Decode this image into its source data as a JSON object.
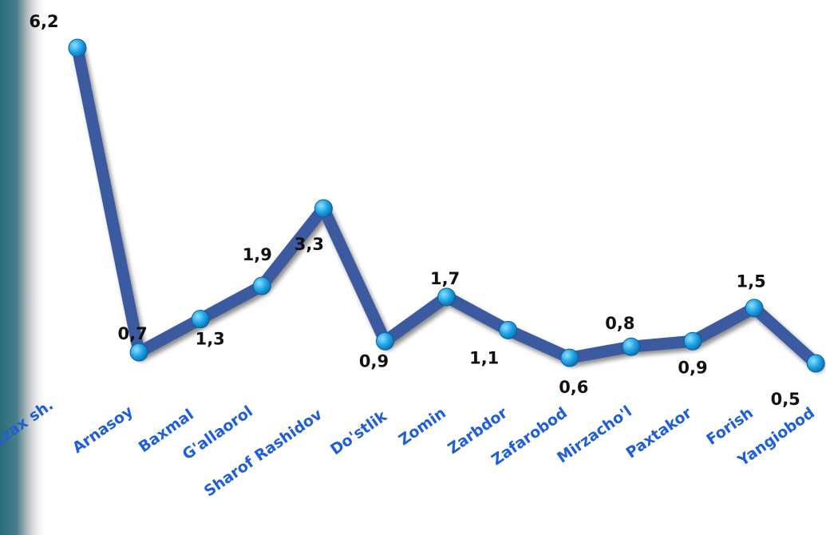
{
  "chart_data": {
    "type": "line",
    "categories": [
      "Jizzax sh.",
      "Arnasoy",
      "Baxmal",
      "G'allaorol",
      "Sharof Rashidov",
      "Do'stlik",
      "Zomin",
      "Zarbdor",
      "Zafarobod",
      "Mirzacho'l",
      "Paxtakor",
      "Forish",
      "Yangiobod"
    ],
    "series": [
      {
        "values": [
          6.2,
          0.7,
          1.3,
          1.9,
          3.3,
          0.9,
          1.7,
          1.1,
          0.6,
          0.8,
          0.9,
          1.5,
          0.5
        ]
      }
    ],
    "data_labels": [
      "6,2",
      "0,7",
      "1,3",
      "1,9",
      "3,3",
      "0,9",
      "1,7",
      "1,1",
      "0,6",
      "0,8",
      "0,9",
      "1,5",
      "0,5"
    ],
    "title": "",
    "xlabel": "",
    "ylabel": "",
    "ylim": [
      0,
      6.5
    ],
    "grid": false,
    "legend": "none",
    "colors": {
      "line": "#3a5aa0",
      "marker": "#1fa3e6",
      "category_label": "#1f5fd6",
      "value_label": "#111111",
      "left_band": "#2a6a7a"
    }
  }
}
